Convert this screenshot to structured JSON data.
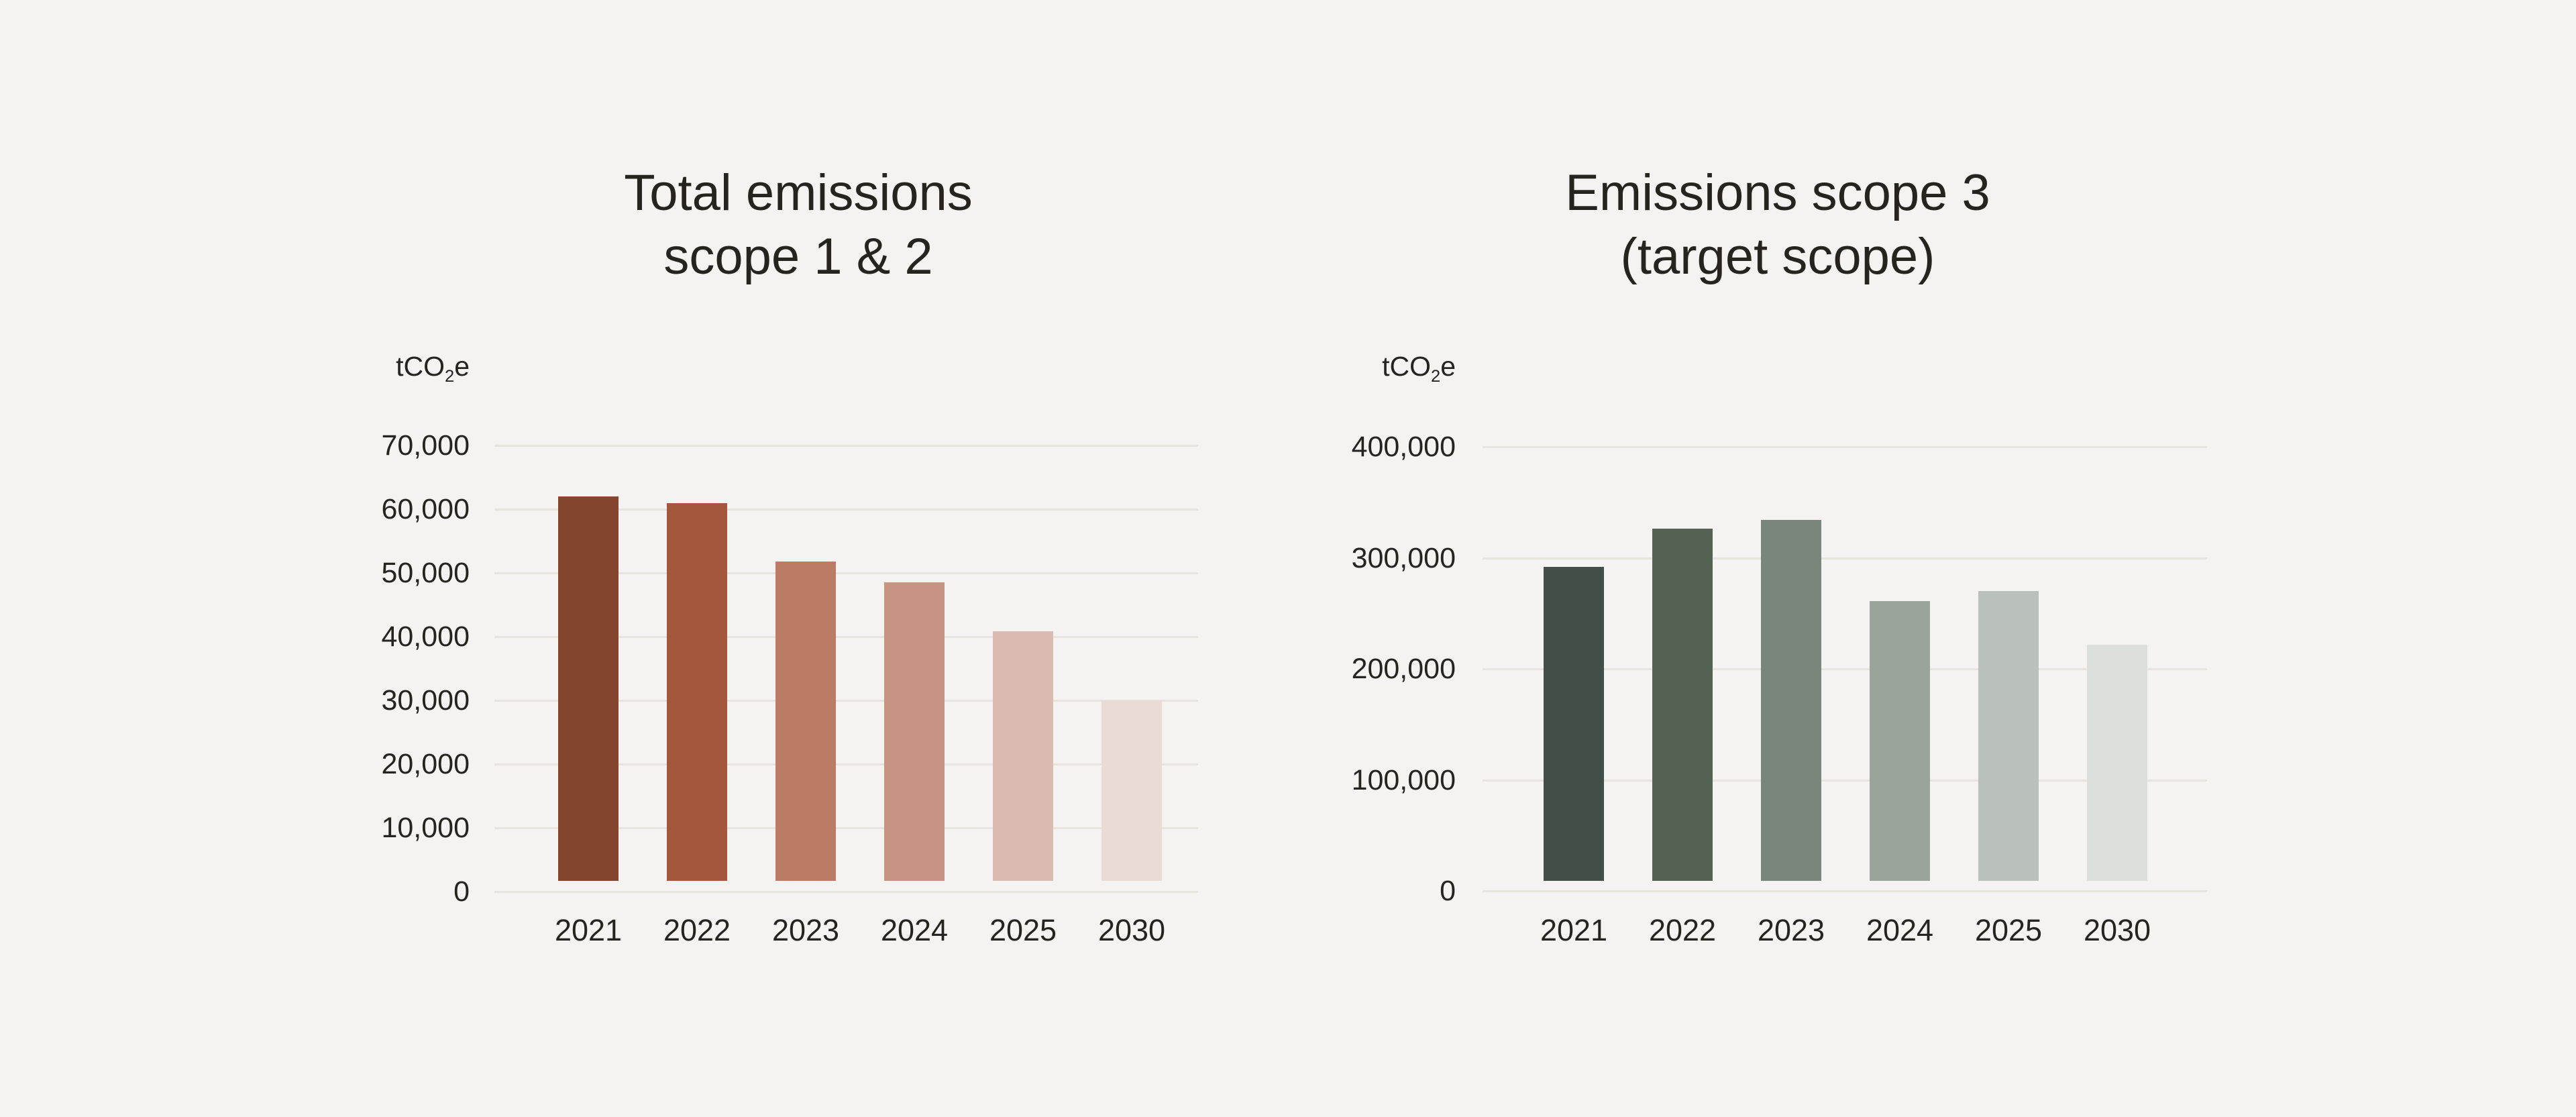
{
  "page": {
    "background": "#f4f3f1",
    "text_color": "#27231f",
    "gridline_color": "#e8e3dd"
  },
  "chart_data": [
    {
      "type": "bar",
      "title_lines": [
        "Total emissions",
        "scope 1 & 2"
      ],
      "unit": {
        "base": "tCO",
        "subscript": "2",
        "tail": "e"
      },
      "categories": [
        "2021",
        "2022",
        "2023",
        "2024",
        "2025",
        "2030"
      ],
      "values": [
        62000,
        61000,
        51800,
        48500,
        40800,
        30000
      ],
      "bar_colors": [
        "#854630",
        "#a5573d",
        "#bc7b64",
        "#c79483",
        "#dcbcb2",
        "#ebdbd5"
      ],
      "ylim": [
        0,
        70000
      ],
      "ytick_labels": [
        "70,000",
        "60,000",
        "50,000",
        "40,000",
        "30,000",
        "20,000",
        "10,000",
        "0"
      ],
      "xlabel": "",
      "ylabel": "tCO2e",
      "grid": true,
      "legend": false
    },
    {
      "type": "bar",
      "title_lines": [
        "Emissions scope 3",
        "(target scope)"
      ],
      "unit": {
        "base": "tCO",
        "subscript": "2",
        "tail": "e"
      },
      "categories": [
        "2021",
        "2022",
        "2023",
        "2024",
        "2025",
        "2030"
      ],
      "values": [
        292000,
        326000,
        334000,
        261000,
        270000,
        222000
      ],
      "bar_colors": [
        "#424f48",
        "#536253",
        "#7a867b",
        "#9aa49b",
        "#b9c1ba",
        "#dbdfdc"
      ],
      "ylim": [
        0,
        400000
      ],
      "ytick_labels": [
        "400,000",
        "300,000",
        "200,000",
        "100,000",
        "0"
      ],
      "xlabel": "",
      "ylabel": "tCO2e",
      "grid": true,
      "legend": false
    }
  ]
}
